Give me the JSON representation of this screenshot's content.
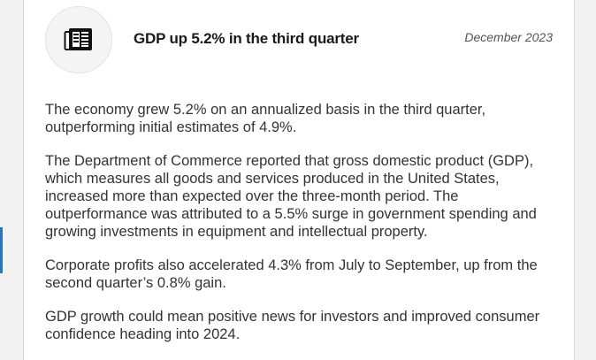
{
  "article": {
    "icon": "newspaper-icon",
    "headline": "GDP up 5.2% in the third quarter",
    "date": "December 2023",
    "paragraphs": [
      "The economy grew 5.2% on an annualized basis in the third quarter, outperforming initial estimates of 4.9%.",
      "The Department of Commerce reported that gross domestic product (GDP), which measures all goods and services produced in the United States, increased more than expected over the three-month period. The outperformance was attributed to a 5.5% surge in government spending and growing investments in equipment and intellectual property.",
      "Corporate profits also accelerated 4.3% from July to September, up from the second quarter’s 0.8% gain.",
      "GDP growth could mean positive news for investors and improved consumer confidence heading into 2024."
    ]
  },
  "colors": {
    "accent": "#1f78c8",
    "text": "#333333",
    "headline": "#1a1a1a"
  }
}
